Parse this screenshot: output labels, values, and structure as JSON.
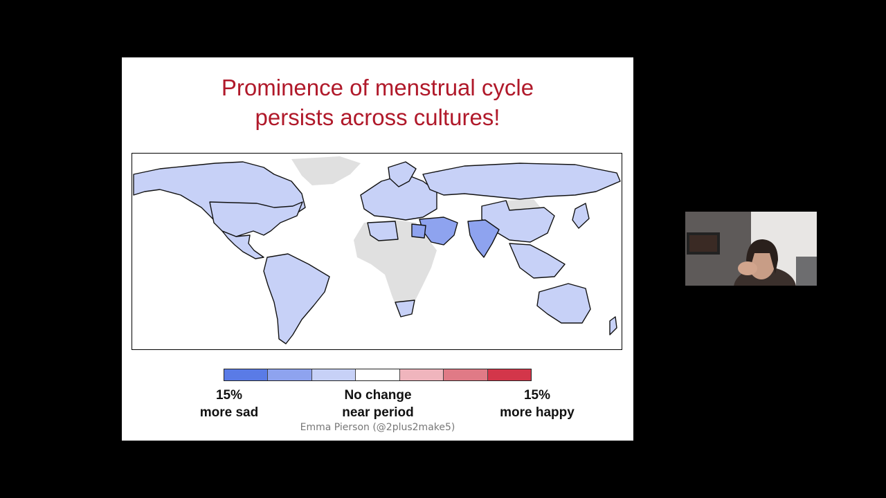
{
  "slide": {
    "title_line1": "Prominence of menstrual cycle",
    "title_line2": "persists across cultures!",
    "title_color": "#b0192a",
    "credit": "Emma Pierson (@2plus2make5)"
  },
  "legend": {
    "colors": [
      "#5a7be6",
      "#8ea3ef",
      "#c7d1f7",
      "#ffffff",
      "#f0b5bd",
      "#e07a86",
      "#d3364a"
    ],
    "left_label_1": "15%",
    "left_label_2": "more sad",
    "center_label_1": "No change",
    "center_label_2": "near period",
    "right_label_1": "15%",
    "right_label_2": "more happy"
  },
  "map": {
    "no_data_color": "#e0e0e0",
    "light_blue": "#c7d1f7",
    "mid_blue": "#8ea3ef"
  },
  "webcam": {
    "icon": "person-on-webcam"
  }
}
